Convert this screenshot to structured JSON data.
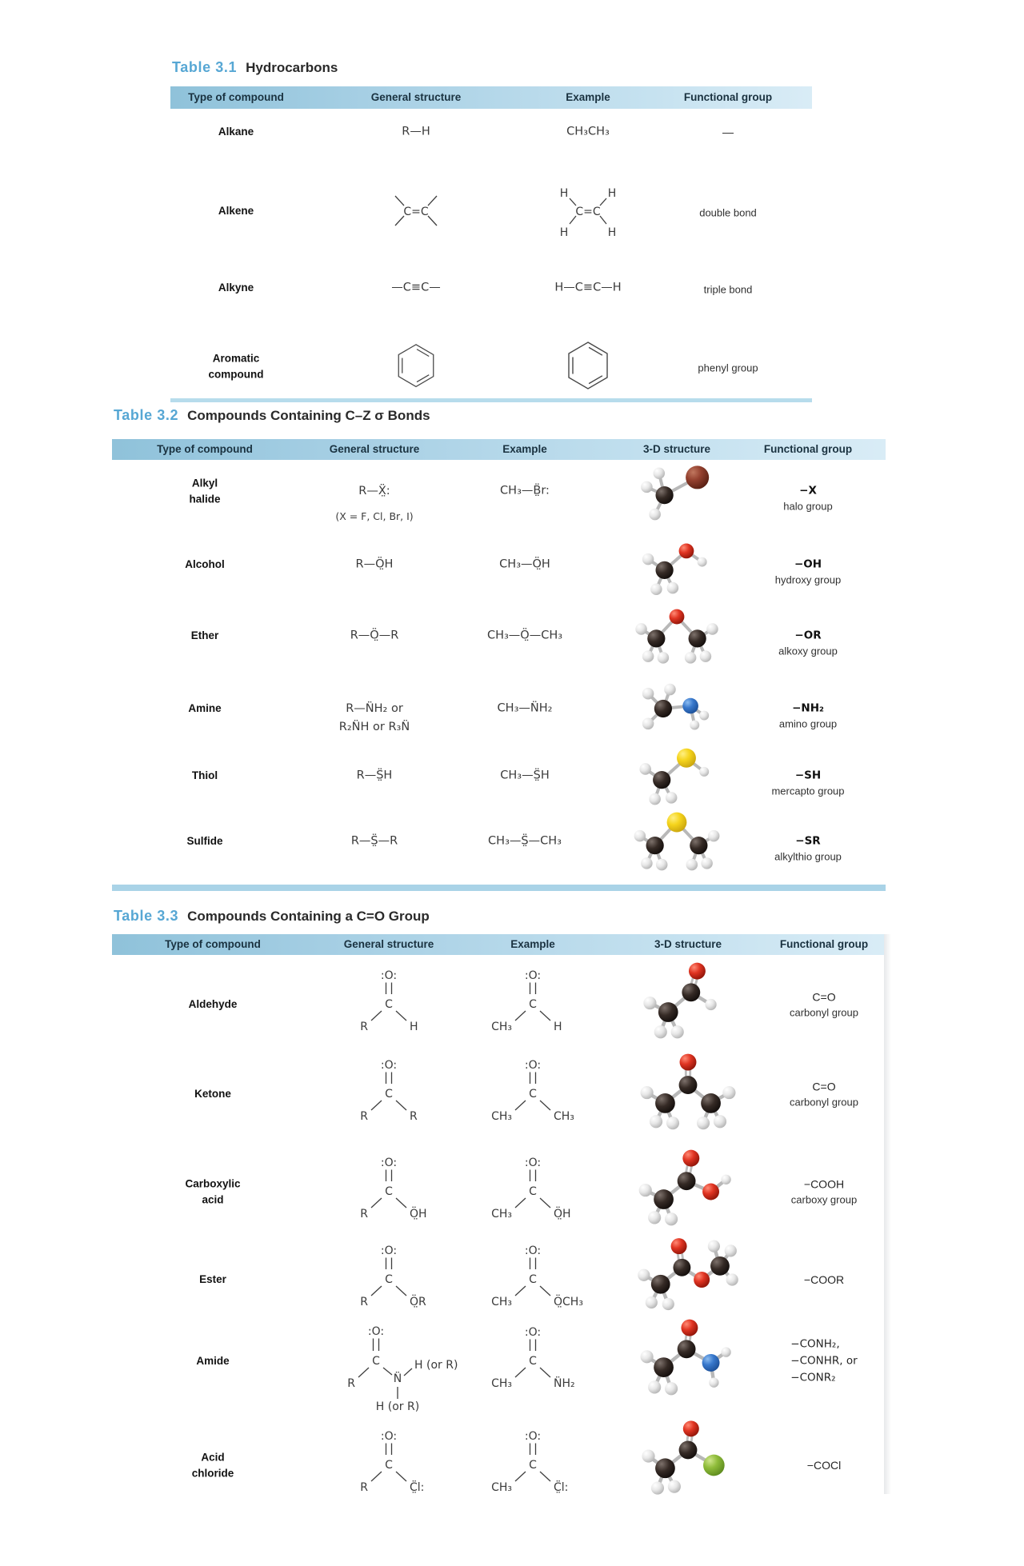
{
  "tables": [
    {
      "number": "Table 3.1",
      "caption": "Hydrocarbons",
      "columns": [
        "Type of compound",
        "General structure",
        "Example",
        "Functional group"
      ],
      "rows": [
        {
          "type": "Alkane",
          "general": {
            "kind": "text",
            "value": "R—H"
          },
          "example": {
            "kind": "text",
            "value": "CH₃CH₃"
          },
          "functional": {
            "main": "—",
            "sub": ""
          }
        },
        {
          "type": "Alkene",
          "general": {
            "kind": "alkene"
          },
          "example": {
            "kind": "alkene_h",
            "h_label": "H"
          },
          "functional": {
            "main": "",
            "sub": "double bond"
          }
        },
        {
          "type": "Alkyne",
          "general": {
            "kind": "text",
            "value": "—C≡C—"
          },
          "example": {
            "kind": "text",
            "value": "H—C≡C—H"
          },
          "functional": {
            "main": "",
            "sub": "triple bond"
          }
        },
        {
          "type": "Aromatic compound",
          "general": {
            "kind": "benzene"
          },
          "example": {
            "kind": "benzene"
          },
          "functional": {
            "main": "",
            "sub": "phenyl group"
          }
        }
      ]
    },
    {
      "number": "Table 3.2",
      "caption": "Compounds Containing C–Z σ Bonds",
      "columns": [
        "Type of compound",
        "General structure",
        "Example",
        "3-D structure",
        "Functional group"
      ],
      "rows": [
        {
          "type": "Alkyl halide",
          "general": {
            "kind": "text2",
            "line1": "R—Ẍ̤:",
            "line2": "(X = F, Cl, Br, I)",
            "line2_style": "note"
          },
          "example": {
            "kind": "text",
            "value": "CH₃—B̤̈r:"
          },
          "molecule": "ch3br",
          "functional": {
            "main": "−X",
            "sub": "halo group"
          }
        },
        {
          "type": "Alcohol",
          "general": {
            "kind": "text",
            "value": "R—Ö̤H"
          },
          "example": {
            "kind": "text",
            "value": "CH₃—Ö̤H"
          },
          "molecule": "ch3oh",
          "functional": {
            "main": "−OH",
            "sub": "hydroxy group"
          }
        },
        {
          "type": "Ether",
          "general": {
            "kind": "text",
            "value": "R—Ö̤—R"
          },
          "example": {
            "kind": "text",
            "value": "CH₃—Ö̤—CH₃"
          },
          "molecule": "ch3och3",
          "functional": {
            "main": "−OR",
            "sub": "alkoxy group"
          }
        },
        {
          "type": "Amine",
          "general": {
            "kind": "text2",
            "line1": "R—N̈H₂ or",
            "line2": "R₂N̈H or R₃N̈",
            "line2_style": "formula"
          },
          "example": {
            "kind": "text",
            "value": "CH₃—N̈H₂"
          },
          "molecule": "ch3nh2",
          "functional": {
            "main": "−NH₂",
            "sub": "amino group"
          }
        },
        {
          "type": "Thiol",
          "general": {
            "kind": "text",
            "value": "R—S̤̈H"
          },
          "example": {
            "kind": "text",
            "value": "CH₃—S̤̈H"
          },
          "molecule": "ch3sh",
          "functional": {
            "main": "−SH",
            "sub": "mercapto group"
          }
        },
        {
          "type": "Sulfide",
          "general": {
            "kind": "text",
            "value": "R—S̤̈—R"
          },
          "example": {
            "kind": "text",
            "value": "CH₃—S̤̈—CH₃"
          },
          "molecule": "ch3sch3",
          "functional": {
            "main": "−SR",
            "sub": "alkylthio group"
          }
        }
      ]
    },
    {
      "number": "Table 3.3",
      "caption": "Compounds Containing a C=O Group",
      "columns": [
        "Type of compound",
        "General structure",
        "Example",
        "3-D structure",
        "Functional group"
      ],
      "rows": [
        {
          "type": "Aldehyde",
          "general": {
            "kind": "carbonyl",
            "top": ":O:",
            "left": "R",
            "right": "H"
          },
          "example": {
            "kind": "carbonyl",
            "top": ":O:",
            "left": "CH₃",
            "right": "H"
          },
          "molecule": "ch3cho",
          "functional": {
            "main": "C=O",
            "sub": "carbonyl group"
          }
        },
        {
          "type": "Ketone",
          "general": {
            "kind": "carbonyl",
            "top": ":O:",
            "left": "R",
            "right": "R"
          },
          "example": {
            "kind": "carbonyl",
            "top": ":O:",
            "left": "CH₃",
            "right": "CH₃"
          },
          "molecule": "acetone",
          "functional": {
            "main": "C=O",
            "sub": "carbonyl group"
          }
        },
        {
          "type": "Carboxylic\nacid",
          "general": {
            "kind": "carbonyl",
            "top": ":O:",
            "left": "R",
            "right": "Ö̤H"
          },
          "example": {
            "kind": "carbonyl",
            "top": ":O:",
            "left": "CH₃",
            "right": "Ö̤H"
          },
          "molecule": "acoh",
          "functional": {
            "main": "−COOH",
            "sub": "carboxy group"
          }
        },
        {
          "type": "Ester",
          "general": {
            "kind": "carbonyl",
            "top": ":O:",
            "left": "R",
            "right": "Ö̤R"
          },
          "example": {
            "kind": "carbonyl",
            "top": ":O:",
            "left": "CH₃",
            "right": "Ö̤CH₃"
          },
          "molecule": "ester",
          "functional": {
            "main": "−COOR",
            "sub": ""
          }
        },
        {
          "type": "Amide",
          "general": {
            "kind": "carbonyl_amide",
            "top": ":O:",
            "left": "R",
            "n": "N̈",
            "n_right": "H (or R)",
            "n_below": "H (or R)"
          },
          "example": {
            "kind": "carbonyl",
            "top": ":O:",
            "left": "CH₃",
            "right": "N̈H₂"
          },
          "molecule": "amide",
          "functional": {
            "lines": [
              "−CONH₂,",
              "−CONHR, or",
              "−CONR₂"
            ]
          }
        },
        {
          "type": "Acid\nchloride",
          "general": {
            "kind": "carbonyl",
            "top": ":O:",
            "left": "R",
            "right": "C̤̈l:"
          },
          "example": {
            "kind": "carbonyl",
            "top": ":O:",
            "left": "CH₃",
            "right": "C̤̈l:"
          },
          "molecule": "acidcl",
          "functional": {
            "main": "−COCl",
            "sub": ""
          }
        }
      ]
    }
  ],
  "atom_colors": {
    "C": "#221a16",
    "H": "#e9e9e9",
    "O": "#d42a18",
    "N": "#2f74c9",
    "S": "#f2d216",
    "Br": "#8a3326",
    "Cl": "#86b832"
  },
  "molecules": {
    "ch3br": {
      "atoms": [
        [
          "H",
          18,
          50,
          8.5
        ],
        [
          "H",
          36,
          30,
          8.5
        ],
        [
          "H",
          30,
          90,
          8.5
        ],
        [
          "C",
          44,
          62,
          13
        ],
        [
          "Br",
          92,
          36,
          17
        ]
      ],
      "bonds": [
        [
          3,
          4
        ],
        [
          3,
          0
        ],
        [
          3,
          1
        ],
        [
          3,
          2
        ]
      ]
    },
    "ch3oh": {
      "atoms": [
        [
          "H",
          20,
          48,
          8.5
        ],
        [
          "H",
          32,
          92,
          8.5
        ],
        [
          "H",
          56,
          90,
          8.5
        ],
        [
          "H",
          99,
          52,
          7
        ],
        [
          "C",
          44,
          64,
          13
        ],
        [
          "O",
          76,
          36,
          11
        ]
      ],
      "bonds": [
        [
          4,
          5
        ],
        [
          5,
          3
        ],
        [
          4,
          0
        ],
        [
          4,
          1
        ],
        [
          4,
          2
        ]
      ]
    },
    "ch3och3": {
      "atoms": [
        [
          "H",
          10,
          46,
          8.5
        ],
        [
          "H",
          20,
          86,
          8.5
        ],
        [
          "H",
          42,
          88,
          8.5
        ],
        [
          "H",
          114,
          46,
          8.5
        ],
        [
          "H",
          82,
          88,
          8.5
        ],
        [
          "H",
          104,
          86,
          8.5
        ],
        [
          "C",
          32,
          60,
          13
        ],
        [
          "C",
          92,
          60,
          13
        ],
        [
          "O",
          62,
          28,
          11
        ]
      ],
      "bonds": [
        [
          6,
          8
        ],
        [
          7,
          8
        ],
        [
          6,
          0
        ],
        [
          6,
          1
        ],
        [
          6,
          2
        ],
        [
          7,
          3
        ],
        [
          7,
          4
        ],
        [
          7,
          5
        ]
      ]
    },
    "ch3nh2": {
      "atoms": [
        [
          "H",
          20,
          34,
          8.5
        ],
        [
          "H",
          52,
          28,
          8.5
        ],
        [
          "H",
          20,
          78,
          8.5
        ],
        [
          "H",
          102,
          66,
          7
        ],
        [
          "H",
          88,
          80,
          7
        ],
        [
          "C",
          42,
          56,
          13
        ],
        [
          "N",
          82,
          52,
          11.5
        ]
      ],
      "bonds": [
        [
          5,
          6
        ],
        [
          5,
          0
        ],
        [
          5,
          1
        ],
        [
          5,
          2
        ],
        [
          6,
          3
        ],
        [
          6,
          4
        ]
      ]
    },
    "ch3sh": {
      "atoms": [
        [
          "H",
          16,
          46,
          8.5
        ],
        [
          "H",
          30,
          90,
          8.5
        ],
        [
          "H",
          54,
          88,
          8.5
        ],
        [
          "H",
          102,
          50,
          7
        ],
        [
          "C",
          40,
          62,
          13
        ],
        [
          "S",
          76,
          30,
          14
        ]
      ],
      "bonds": [
        [
          4,
          5
        ],
        [
          5,
          3
        ],
        [
          4,
          0
        ],
        [
          4,
          1
        ],
        [
          4,
          2
        ]
      ]
    },
    "ch3sch3": {
      "atoms": [
        [
          "H",
          8,
          48,
          8.5
        ],
        [
          "H",
          18,
          88,
          8.5
        ],
        [
          "H",
          40,
          90,
          8.5
        ],
        [
          "H",
          116,
          48,
          8.5
        ],
        [
          "H",
          84,
          90,
          8.5
        ],
        [
          "H",
          106,
          88,
          8.5
        ],
        [
          "C",
          30,
          62,
          13
        ],
        [
          "C",
          94,
          62,
          13
        ],
        [
          "S",
          62,
          28,
          14.5
        ]
      ],
      "bonds": [
        [
          6,
          8
        ],
        [
          7,
          8
        ],
        [
          6,
          0
        ],
        [
          6,
          1
        ],
        [
          6,
          2
        ],
        [
          7,
          3
        ],
        [
          7,
          4
        ],
        [
          7,
          5
        ]
      ]
    },
    "ch3cho": {
      "atoms": [
        [
          "H",
          12,
          54,
          8.5
        ],
        [
          "H",
          26,
          92,
          8.5
        ],
        [
          "H",
          48,
          92,
          8.5
        ],
        [
          "H",
          92,
          56,
          7.5
        ],
        [
          "C",
          36,
          66,
          13
        ],
        [
          "C",
          66,
          40,
          12
        ],
        [
          "O",
          74,
          12,
          11
        ]
      ],
      "bonds": [
        [
          5,
          6,
          2
        ],
        [
          4,
          5
        ],
        [
          5,
          3
        ],
        [
          4,
          0
        ],
        [
          4,
          1
        ],
        [
          4,
          2
        ]
      ]
    },
    "acetone": {
      "atoms": [
        [
          "H",
          8,
          54,
          8.5
        ],
        [
          "H",
          20,
          92,
          8.5
        ],
        [
          "H",
          42,
          94,
          8.5
        ],
        [
          "H",
          116,
          54,
          8.5
        ],
        [
          "H",
          82,
          94,
          8.5
        ],
        [
          "H",
          104,
          92,
          8.5
        ],
        [
          "C",
          32,
          68,
          13
        ],
        [
          "C",
          92,
          68,
          13
        ],
        [
          "C",
          62,
          44,
          12
        ],
        [
          "O",
          62,
          14,
          11
        ]
      ],
      "bonds": [
        [
          8,
          9,
          2
        ],
        [
          6,
          8
        ],
        [
          7,
          8
        ],
        [
          6,
          0
        ],
        [
          6,
          1
        ],
        [
          6,
          2
        ],
        [
          7,
          3
        ],
        [
          7,
          4
        ],
        [
          7,
          5
        ]
      ]
    },
    "acoh": {
      "atoms": [
        [
          "H",
          6,
          54,
          8.5
        ],
        [
          "H",
          18,
          90,
          8.5
        ],
        [
          "H",
          40,
          92,
          8.5
        ],
        [
          "H",
          112,
          40,
          6.5
        ],
        [
          "C",
          30,
          66,
          13
        ],
        [
          "C",
          60,
          42,
          12
        ],
        [
          "O",
          66,
          12,
          11
        ],
        [
          "O",
          92,
          56,
          11
        ]
      ],
      "bonds": [
        [
          5,
          6,
          2
        ],
        [
          4,
          5
        ],
        [
          5,
          7
        ],
        [
          7,
          3
        ],
        [
          4,
          0
        ],
        [
          4,
          1
        ],
        [
          4,
          2
        ]
      ]
    },
    "ester": {
      "atoms": [
        [
          "H",
          4,
          50,
          8
        ],
        [
          "H",
          14,
          86,
          8
        ],
        [
          "H",
          36,
          88,
          8
        ],
        [
          "H",
          96,
          12,
          8
        ],
        [
          "H",
          118,
          18,
          8
        ],
        [
          "H",
          120,
          56,
          8
        ],
        [
          "C",
          26,
          62,
          12.5
        ],
        [
          "C",
          104,
          38,
          12.5
        ],
        [
          "C",
          54,
          40,
          11.5
        ],
        [
          "O",
          50,
          12,
          10.5
        ],
        [
          "O",
          80,
          56,
          10.5
        ]
      ],
      "bonds": [
        [
          8,
          9,
          2
        ],
        [
          6,
          8
        ],
        [
          8,
          10
        ],
        [
          10,
          7
        ],
        [
          6,
          0
        ],
        [
          6,
          1
        ],
        [
          6,
          2
        ],
        [
          7,
          3
        ],
        [
          7,
          4
        ],
        [
          7,
          5
        ]
      ]
    },
    "amide": {
      "atoms": [
        [
          "H",
          8,
          50,
          8.5
        ],
        [
          "H",
          18,
          90,
          8.5
        ],
        [
          "H",
          40,
          92,
          8.5
        ],
        [
          "H",
          112,
          44,
          6.5
        ],
        [
          "H",
          96,
          84,
          6.5
        ],
        [
          "C",
          30,
          64,
          13
        ],
        [
          "C",
          60,
          40,
          12
        ],
        [
          "O",
          64,
          12,
          11
        ],
        [
          "N",
          92,
          58,
          11.5
        ]
      ],
      "bonds": [
        [
          6,
          7,
          2
        ],
        [
          5,
          6
        ],
        [
          6,
          8
        ],
        [
          8,
          3
        ],
        [
          8,
          4
        ],
        [
          5,
          0
        ],
        [
          5,
          1
        ],
        [
          5,
          2
        ]
      ]
    },
    "acidcl": {
      "atoms": [
        [
          "H",
          10,
          44,
          8.5
        ],
        [
          "H",
          22,
          86,
          8.5
        ],
        [
          "H",
          44,
          84,
          8.5
        ],
        [
          "C",
          32,
          60,
          13
        ],
        [
          "C",
          62,
          36,
          12
        ],
        [
          "O",
          66,
          8,
          10.5
        ],
        [
          "Cl",
          96,
          56,
          14
        ]
      ],
      "bonds": [
        [
          4,
          5,
          2
        ],
        [
          3,
          4
        ],
        [
          4,
          6
        ],
        [
          3,
          0
        ],
        [
          3,
          1
        ],
        [
          3,
          2
        ]
      ]
    }
  }
}
